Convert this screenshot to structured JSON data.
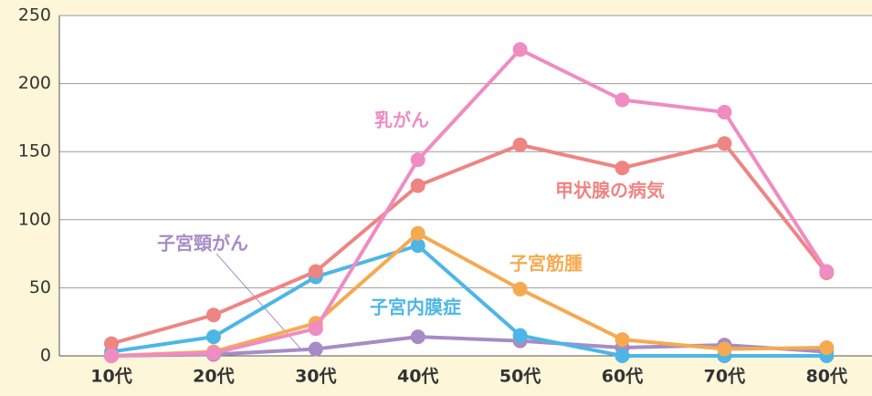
{
  "chart_data": {
    "type": "line",
    "categories": [
      "10代",
      "20代",
      "30代",
      "40代",
      "50代",
      "60代",
      "70代",
      "80代"
    ],
    "series": [
      {
        "name": "乳がん",
        "color": "#ef8cc2",
        "values": [
          0,
          2,
          20,
          144,
          225,
          188,
          179,
          62
        ]
      },
      {
        "name": "甲状腺の病気",
        "color": "#ee8583",
        "values": [
          9,
          30,
          62,
          125,
          155,
          138,
          156,
          61
        ]
      },
      {
        "name": "子宮筋腫",
        "color": "#f5aa50",
        "values": [
          0,
          3,
          24,
          90,
          49,
          12,
          5,
          6
        ]
      },
      {
        "name": "子宮内膜症",
        "color": "#4db6e6",
        "values": [
          3,
          14,
          58,
          81,
          15,
          0,
          0,
          0
        ]
      },
      {
        "name": "子宮頸がん",
        "color": "#a68cc6",
        "values": [
          0,
          1,
          5,
          14,
          11,
          6,
          8,
          3
        ]
      }
    ],
    "ylim": [
      0,
      250
    ],
    "yticks": [
      0,
      50,
      100,
      150,
      200,
      250
    ],
    "grid": true
  }
}
